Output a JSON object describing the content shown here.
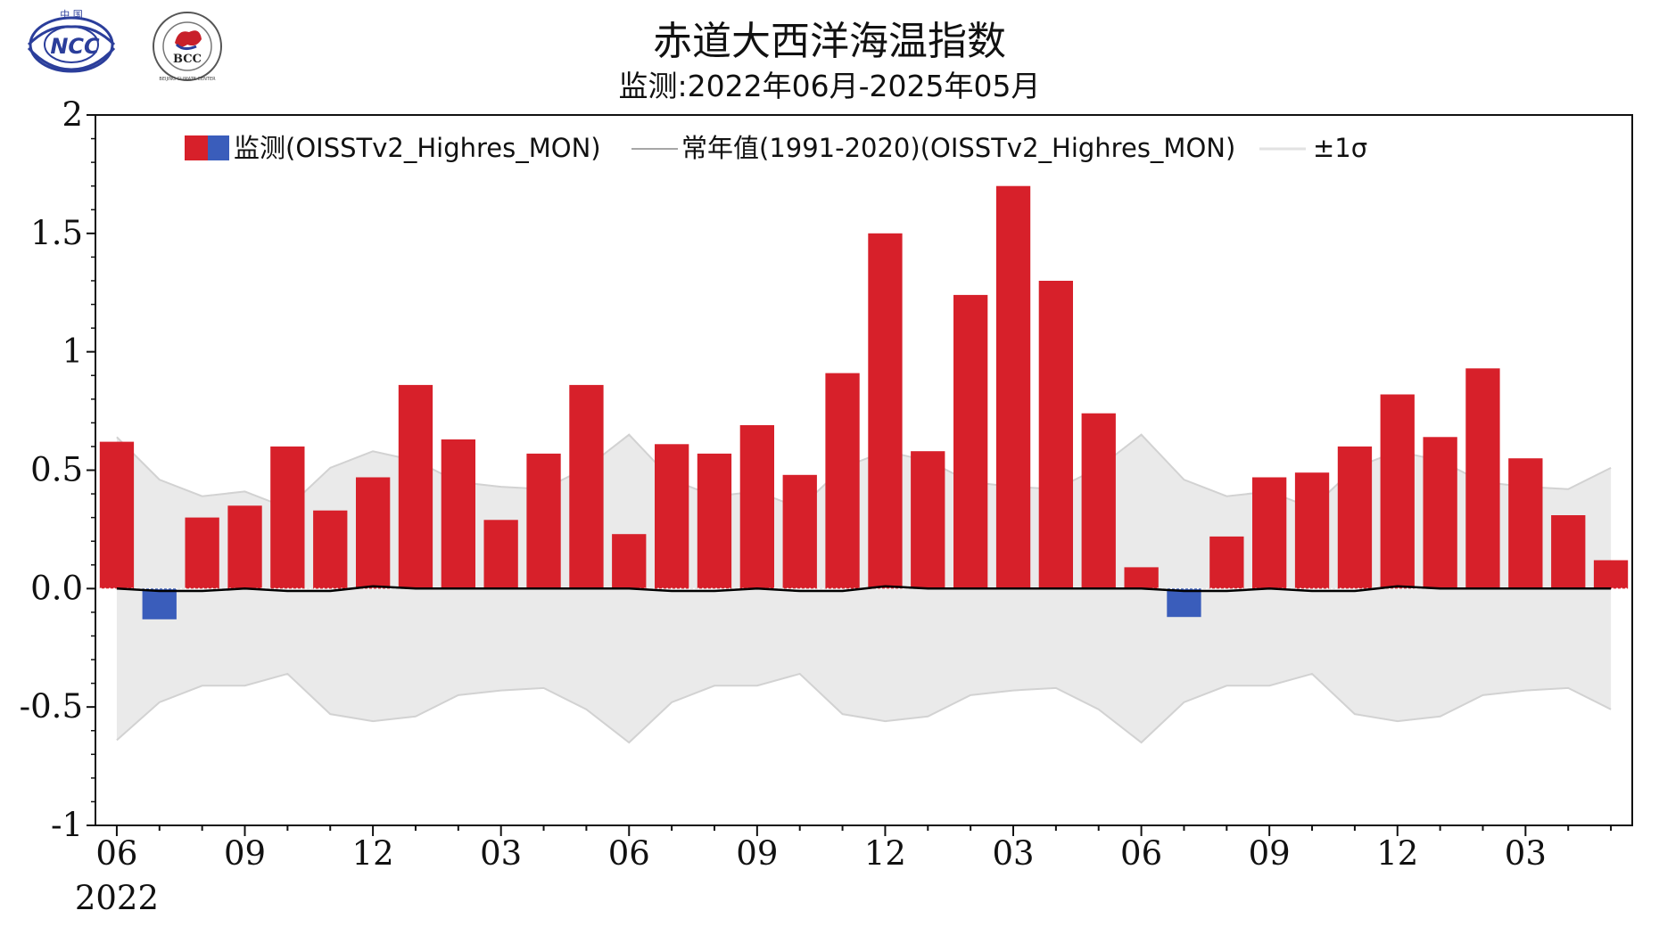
{
  "header": {
    "title": "赤道大西洋海温指数",
    "subtitle": "监测:2022年06月-2025年05月"
  },
  "logos": {
    "ncc_top": "中 国",
    "ncc_text": "NCC",
    "bcc_text": "BCC",
    "bcc_ring": "BEIJING CLIMATE CENTER"
  },
  "colors": {
    "positive": "#D7202A",
    "negative": "#3A5DBB",
    "band": "#EAEAEA",
    "band_edge": "#D2D2D2",
    "normal_line": "#000000"
  },
  "chart_data": {
    "type": "bar",
    "title": "赤道大西洋海温指数",
    "subtitle": "监测:2022年06月-2025年05月",
    "ylim": [
      -1,
      2
    ],
    "yticks": [
      2,
      1.5,
      1,
      0.5,
      0.0,
      -0.5,
      -1
    ],
    "ytick_labels": [
      "2",
      "1.5",
      "1",
      "0.5",
      "0.0",
      "-0.5",
      "-1"
    ],
    "xtick_labels": [
      "06",
      "09",
      "12",
      "03",
      "06",
      "09",
      "12",
      "03",
      "06",
      "09",
      "12",
      "03"
    ],
    "xtick_month_index": [
      0,
      3,
      6,
      9,
      12,
      15,
      18,
      21,
      24,
      27,
      30,
      33
    ],
    "start_year_label": "2022",
    "grid": false,
    "legend": {
      "position": "top",
      "items": [
        "监测(OISSTv2_Highres_MON)",
        "常年值(1991-2020)(OISSTv2_Highres_MON)",
        "±1σ"
      ]
    },
    "months": [
      "2022-06",
      "2022-07",
      "2022-08",
      "2022-09",
      "2022-10",
      "2022-11",
      "2022-12",
      "2023-01",
      "2023-02",
      "2023-03",
      "2023-04",
      "2023-05",
      "2023-06",
      "2023-07",
      "2023-08",
      "2023-09",
      "2023-10",
      "2023-11",
      "2023-12",
      "2024-01",
      "2024-02",
      "2024-03",
      "2024-04",
      "2024-05",
      "2024-06",
      "2024-07",
      "2024-08",
      "2024-09",
      "2024-10",
      "2024-11",
      "2024-12",
      "2025-01",
      "2025-02",
      "2025-03",
      "2025-04",
      "2025-05"
    ],
    "series": [
      {
        "name": "监测(OISSTv2_Highres_MON)",
        "values": [
          0.62,
          -0.13,
          0.3,
          0.35,
          0.6,
          0.33,
          0.47,
          0.86,
          0.63,
          0.29,
          0.57,
          0.86,
          0.23,
          0.61,
          0.57,
          0.69,
          0.48,
          0.91,
          1.5,
          0.58,
          1.24,
          1.7,
          1.3,
          0.74,
          0.09,
          -0.12,
          0.22,
          0.47,
          0.49,
          0.6,
          0.82,
          0.64,
          0.93,
          0.55,
          0.31,
          0.12
        ]
      },
      {
        "name": "常年值(1991-2020)(OISSTv2_Highres_MON)",
        "values": [
          0.0,
          -0.01,
          -0.01,
          0.0,
          -0.01,
          -0.01,
          0.01,
          0.0,
          0.0,
          0.0,
          0.0,
          0.0,
          0.0,
          -0.01,
          -0.01,
          0.0,
          -0.01,
          -0.01,
          0.01,
          0.0,
          0.0,
          0.0,
          0.0,
          0.0,
          0.0,
          -0.01,
          -0.01,
          0.0,
          -0.01,
          -0.01,
          0.01,
          0.0,
          0.0,
          0.0,
          0.0,
          0.0
        ]
      },
      {
        "name": "±1σ",
        "values": [
          0.64,
          0.47,
          0.4,
          0.41,
          0.35,
          0.52,
          0.57,
          0.54,
          0.45,
          0.43,
          0.42,
          0.51,
          0.65,
          0.47,
          0.4,
          0.41,
          0.35,
          0.52,
          0.57,
          0.54,
          0.45,
          0.43,
          0.42,
          0.51,
          0.65,
          0.47,
          0.4,
          0.41,
          0.35,
          0.52,
          0.57,
          0.54,
          0.45,
          0.43,
          0.42,
          0.51
        ]
      }
    ]
  }
}
